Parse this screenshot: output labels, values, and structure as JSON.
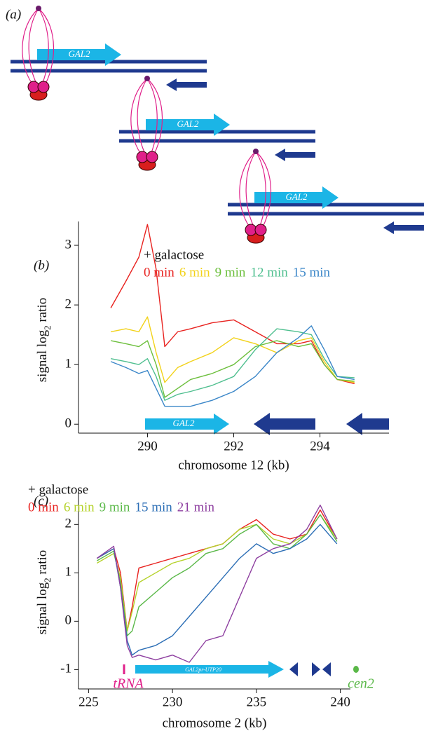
{
  "panel_a": {
    "label": "(a)",
    "gene_labels": [
      "GAL2",
      "GAL2",
      "GAL2"
    ]
  },
  "chart_data": [
    {
      "type": "line",
      "panel_label": "(b)",
      "legend_title": "+ galactose",
      "xlabel": "chromosome 12 (kb)",
      "ylabel": [
        "signal log",
        "2",
        " ratio"
      ],
      "annotations": [
        "GAL2"
      ],
      "x": [
        289.15,
        289.5,
        289.8,
        290.0,
        290.2,
        290.4,
        290.7,
        291.0,
        291.5,
        292.0,
        292.5,
        293.0,
        293.5,
        293.8,
        294.1,
        294.4,
        294.8
      ],
      "series": [
        {
          "name": "0 min",
          "color": "#e8221f",
          "values": [
            1.95,
            2.4,
            2.8,
            3.35,
            2.6,
            1.3,
            1.55,
            1.6,
            1.7,
            1.75,
            1.55,
            1.35,
            1.35,
            1.4,
            1.0,
            0.75,
            0.68
          ]
        },
        {
          "name": "6 min",
          "color": "#f2d21a",
          "values": [
            1.55,
            1.6,
            1.55,
            1.8,
            1.2,
            0.7,
            0.95,
            1.05,
            1.2,
            1.45,
            1.35,
            1.2,
            1.4,
            1.45,
            1.05,
            0.75,
            0.7
          ]
        },
        {
          "name": "9 min",
          "color": "#6cbf3c",
          "values": [
            1.4,
            1.35,
            1.3,
            1.4,
            1.0,
            0.45,
            0.6,
            0.75,
            0.85,
            1.0,
            1.3,
            1.4,
            1.3,
            1.35,
            1.0,
            0.75,
            0.72
          ]
        },
        {
          "name": "12 min",
          "color": "#4fbf8f",
          "values": [
            1.1,
            1.05,
            1.0,
            1.1,
            0.8,
            0.4,
            0.5,
            0.55,
            0.65,
            0.8,
            1.25,
            1.6,
            1.55,
            1.5,
            1.1,
            0.8,
            0.78
          ]
        },
        {
          "name": "15 min",
          "color": "#3a86c8",
          "values": [
            1.05,
            0.95,
            0.85,
            0.9,
            0.6,
            0.3,
            0.3,
            0.3,
            0.4,
            0.55,
            0.8,
            1.2,
            1.45,
            1.65,
            1.25,
            0.8,
            0.75
          ]
        }
      ],
      "xlim": [
        288.4,
        295.6
      ],
      "xticks": [
        290,
        292,
        294
      ],
      "ylim": [
        -0.15,
        3.4
      ],
      "yticks": [
        0,
        1,
        2,
        3
      ]
    },
    {
      "type": "line",
      "panel_label": "(c)",
      "legend_title": "+ galactose",
      "xlabel": "chromosome 2 (kb)",
      "ylabel": [
        "signal log",
        "2",
        " ratio"
      ],
      "annotations": [
        "tRNA",
        "GAL2pr-UTP20",
        "cen2"
      ],
      "x": [
        225.5,
        226.5,
        226.9,
        227.3,
        227.6,
        228,
        229,
        230,
        231,
        232,
        233,
        234,
        235,
        236,
        237,
        238,
        238.8,
        239.8
      ],
      "series": [
        {
          "name": "0 min",
          "color": "#e8221f",
          "values": [
            1.3,
            1.5,
            1.0,
            -0.2,
            0.3,
            1.1,
            1.2,
            1.3,
            1.4,
            1.5,
            1.6,
            1.9,
            2.1,
            1.8,
            1.7,
            1.8,
            2.3,
            1.7
          ]
        },
        {
          "name": "6 min",
          "color": "#b5d22a",
          "values": [
            1.2,
            1.4,
            0.9,
            -0.2,
            0.2,
            0.8,
            1.0,
            1.2,
            1.3,
            1.5,
            1.6,
            1.9,
            2.0,
            1.7,
            1.6,
            1.8,
            2.2,
            1.7
          ]
        },
        {
          "name": "9 min",
          "color": "#5ab848",
          "values": [
            1.25,
            1.45,
            0.8,
            -0.3,
            -0.2,
            0.3,
            0.6,
            0.9,
            1.1,
            1.4,
            1.5,
            1.8,
            2.0,
            1.6,
            1.5,
            1.8,
            2.2,
            1.65
          ]
        },
        {
          "name": "15 min",
          "color": "#2a6db5",
          "values": [
            1.3,
            1.5,
            0.7,
            -0.4,
            -0.7,
            -0.6,
            -0.5,
            -0.3,
            0.1,
            0.5,
            0.9,
            1.3,
            1.6,
            1.4,
            1.5,
            1.7,
            2.0,
            1.6
          ]
        },
        {
          "name": "21 min",
          "color": "#8e3fa0",
          "values": [
            1.3,
            1.55,
            0.7,
            -0.5,
            -0.75,
            -0.7,
            -0.8,
            -0.7,
            -0.85,
            -0.4,
            -0.3,
            0.5,
            1.3,
            1.5,
            1.6,
            1.9,
            2.4,
            1.7
          ]
        }
      ],
      "xlim": [
        224.4,
        240.6
      ],
      "xticks": [
        225,
        230,
        235,
        240
      ],
      "ylim": [
        -1.4,
        2.7
      ],
      "yticks": [
        -1,
        0,
        1,
        2
      ]
    }
  ]
}
